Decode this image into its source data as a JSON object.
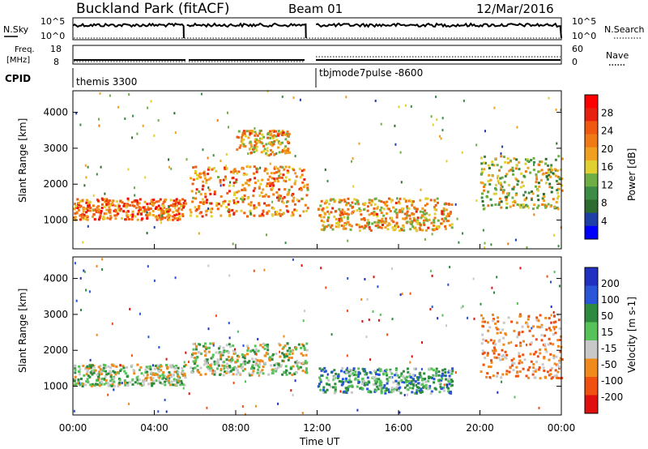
{
  "header": {
    "title": "Buckland Park (fitACF)",
    "beam": "Beam 01",
    "date": "12/Mar/2016"
  },
  "strip": {
    "nsky_label": "N.Sky",
    "nsky_ticks": [
      "10^5",
      "10^0"
    ],
    "nsearch_label": "N.Search",
    "nsearch_ticks": [
      "10^5",
      "10^0"
    ],
    "freq_label": [
      "Freq.",
      "[MHz]"
    ],
    "freq_ticks": [
      "18",
      "8"
    ],
    "nave_label": "Nave",
    "nave_ticks": [
      "60",
      "0"
    ],
    "cpid_label": "CPID",
    "cpid_segments": [
      "themis 3300",
      "tbjmode7pulse -8600"
    ]
  },
  "chart_data": [
    {
      "type": "heatmap",
      "name": "power-panel",
      "ylabel": "Slant Range [km]",
      "yticks": [
        1000,
        2000,
        3000,
        4000
      ],
      "ylim": [
        200,
        4600
      ],
      "xlim": [
        0,
        24
      ],
      "colorbar": {
        "label": "Power [dB]",
        "ticks": [
          "4",
          "8",
          "12",
          "16",
          "20",
          "24",
          "28"
        ],
        "colors": [
          "#0000ff",
          "#1e3ea8",
          "#2e6b2e",
          "#3c8c46",
          "#6fae45",
          "#e0d030",
          "#f0a020",
          "#ef7a16",
          "#ef5a10",
          "#e82010",
          "#ff0000"
        ]
      },
      "regions": [
        {
          "hours": [
            0,
            5.5
          ],
          "range_km": [
            1000,
            1600
          ],
          "power_db": 22
        },
        {
          "hours": [
            5.7,
            11.5
          ],
          "range_km": [
            1100,
            2500
          ],
          "power_db": 20
        },
        {
          "hours": [
            8,
            10.6
          ],
          "range_km": [
            2800,
            3500
          ],
          "power_db": 18
        },
        {
          "hours": [
            12,
            18.6
          ],
          "range_km": [
            700,
            1600
          ],
          "power_db": 18
        },
        {
          "hours": [
            20,
            24
          ],
          "range_km": [
            1300,
            2800
          ],
          "power_db": 14
        }
      ]
    },
    {
      "type": "heatmap",
      "name": "velocity-panel",
      "ylabel": "Slant Range [km]",
      "yticks": [
        1000,
        2000,
        3000,
        4000
      ],
      "ylim": [
        200,
        4600
      ],
      "xlim": [
        0,
        24
      ],
      "xticks": [
        "00:00",
        "04:00",
        "08:00",
        "12:00",
        "16:00",
        "20:00",
        "00:00"
      ],
      "xlabel": "Time UT",
      "colorbar": {
        "label": "Velocity [m s-1]",
        "ticks": [
          "200",
          "100",
          "50",
          "15",
          "-15",
          "-50",
          "-100",
          "-200"
        ],
        "colors": [
          "#2030c0",
          "#2a55d8",
          "#2e8a3e",
          "#56c25a",
          "#c8c8c8",
          "#f08a1a",
          "#f05010",
          "#e01010"
        ]
      },
      "regions": [
        {
          "hours": [
            0,
            5.5
          ],
          "range_km": [
            1000,
            1600
          ],
          "velocity_ms": 0
        },
        {
          "hours": [
            5.7,
            11.5
          ],
          "range_km": [
            1300,
            2200
          ],
          "velocity_ms": 0
        },
        {
          "hours": [
            12,
            18.6
          ],
          "range_km": [
            800,
            1500
          ],
          "velocity_ms": 40
        },
        {
          "hours": [
            20,
            24
          ],
          "range_km": [
            1200,
            3000
          ],
          "velocity_ms": -60
        }
      ]
    }
  ]
}
